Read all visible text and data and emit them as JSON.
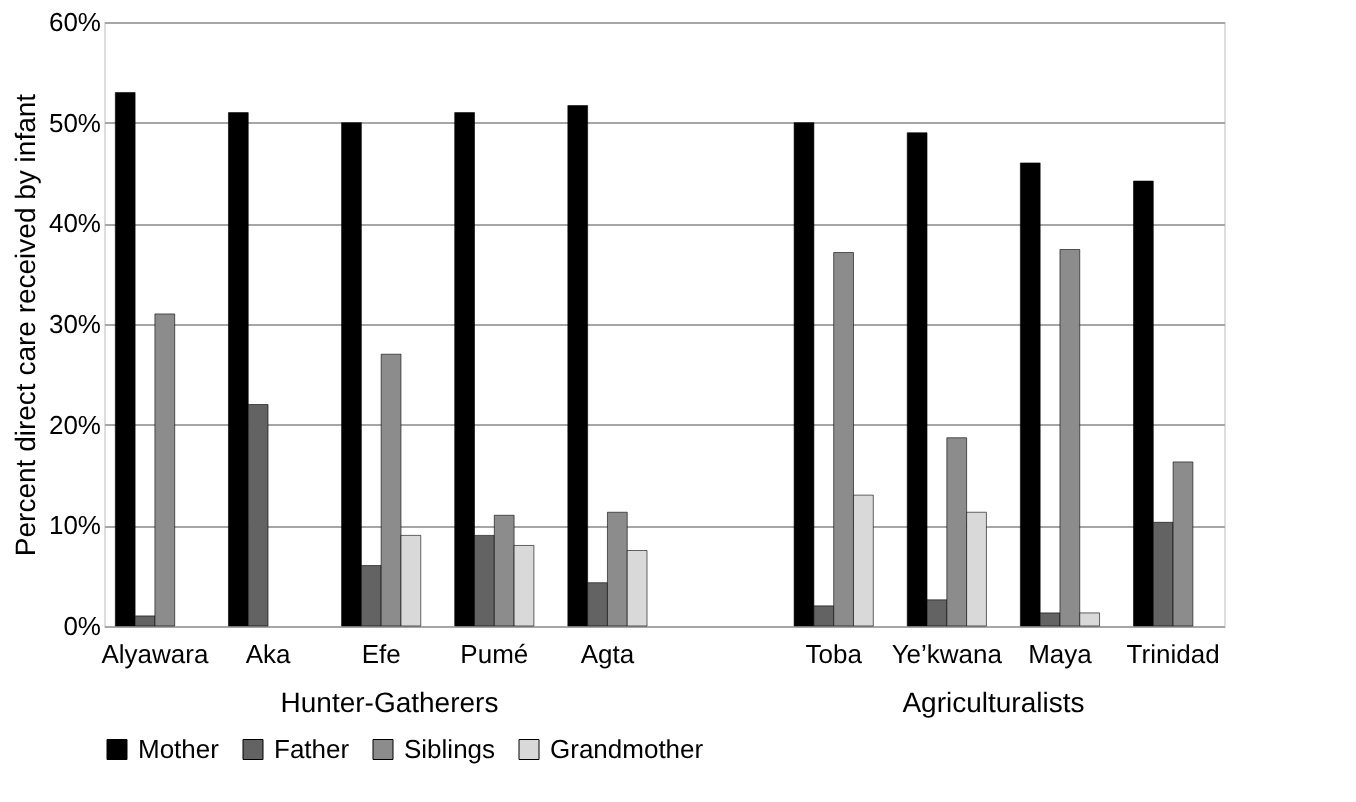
{
  "chart_data": {
    "type": "bar",
    "ylabel": "Percent direct care received by infant",
    "categories": [
      "Alyawara",
      "Aka",
      "Efe",
      "Pumé",
      "Agta",
      null,
      "Toba",
      "Ye’kwana",
      "Maya",
      "Trinidad"
    ],
    "series": [
      {
        "name": "Mother",
        "color": "#000000",
        "values": [
          53,
          51,
          50,
          51,
          51.7,
          null,
          50,
          49,
          46,
          44.2
        ]
      },
      {
        "name": "Father",
        "color": "#636363",
        "values": [
          1,
          22,
          6,
          9,
          4.3,
          null,
          2,
          2.6,
          1.3,
          10.3
        ]
      },
      {
        "name": "Siblings",
        "color": "#8c8c8c",
        "values": [
          31,
          null,
          27,
          11,
          11.3,
          null,
          37.1,
          18.7,
          37.4,
          16.3
        ]
      },
      {
        "name": "Grandmother",
        "color": "#d9d9d9",
        "values": [
          null,
          null,
          9,
          8,
          7.5,
          null,
          13,
          11.3,
          1.3,
          null
        ]
      }
    ],
    "ylim": [
      0,
      60
    ],
    "yticks": [
      {
        "value": 0,
        "label": "0%"
      },
      {
        "value": 10,
        "label": "10%"
      },
      {
        "value": 20,
        "label": "20%"
      },
      {
        "value": 30,
        "label": "30%"
      },
      {
        "value": 40,
        "label": "40%"
      },
      {
        "value": 50,
        "label": "50%"
      },
      {
        "value": 60,
        "label": "60%"
      }
    ],
    "grid": "y",
    "legend": "bottom",
    "annotations": [
      "Hunter-Gatherers",
      "Agriculturalists"
    ]
  }
}
